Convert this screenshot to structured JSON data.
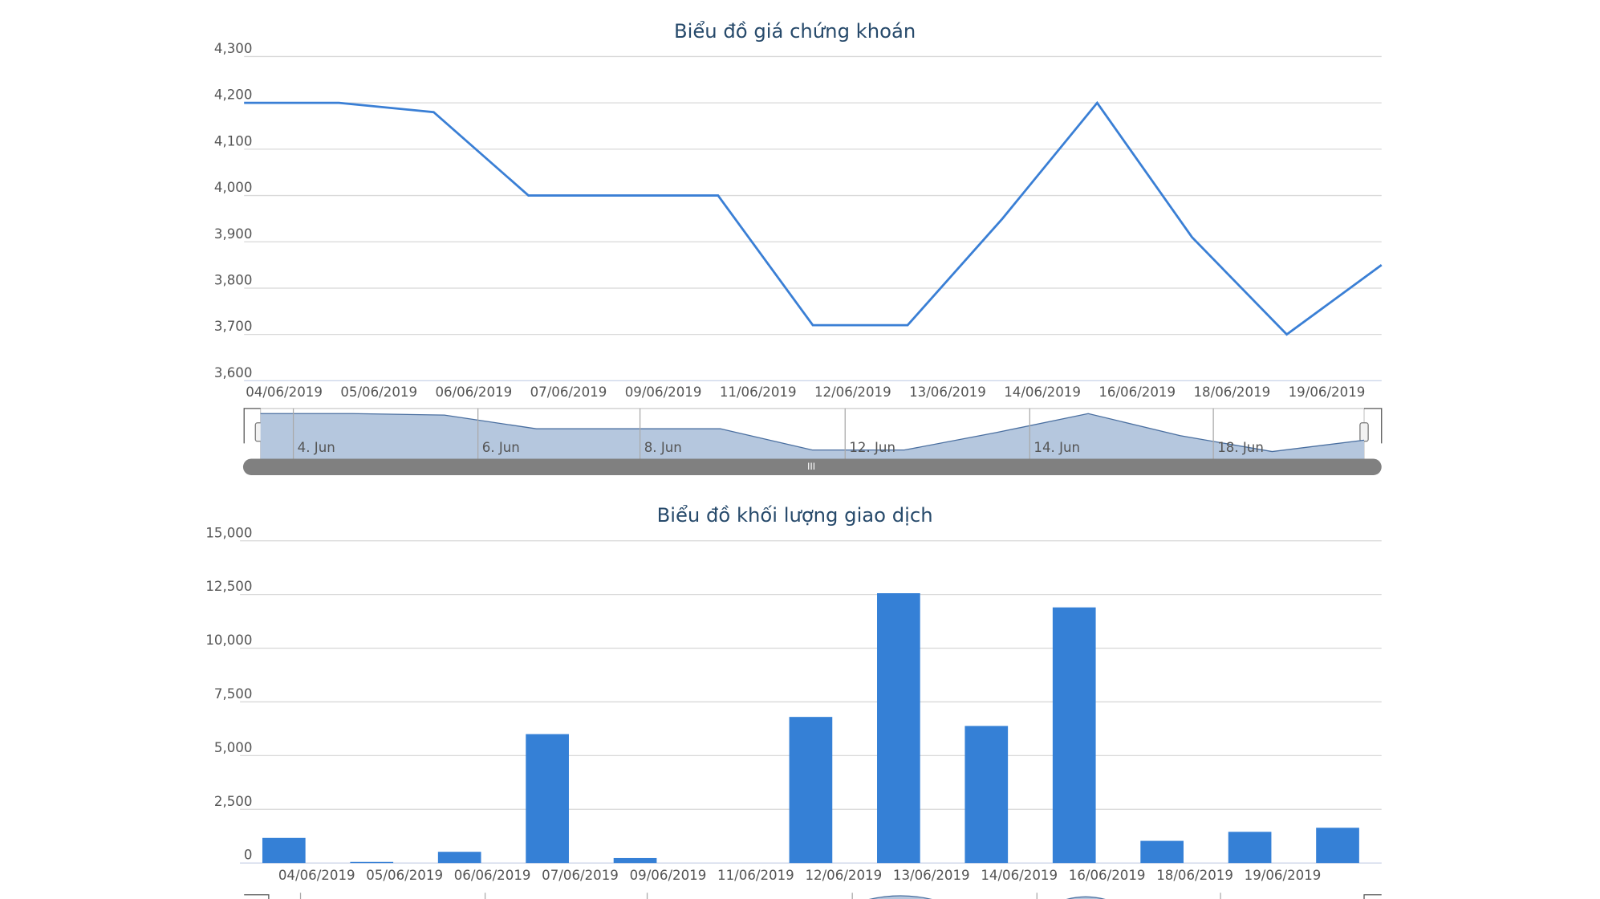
{
  "chart_data": [
    {
      "type": "line",
      "title": "Biểu đồ giá chứng khoán",
      "categories": [
        "04/06/2019",
        "05/06/2019",
        "06/06/2019",
        "07/06/2019",
        "09/06/2019",
        "11/06/2019",
        "12/06/2019",
        "13/06/2019",
        "14/06/2019",
        "16/06/2019",
        "18/06/2019",
        "19/06/2019",
        null
      ],
      "values": [
        4200,
        4200,
        4180,
        4000,
        4000,
        4000,
        3720,
        3720,
        3950,
        4200,
        3910,
        3700,
        3850
      ],
      "color": "#3a7fd5",
      "ylim": [
        3600,
        4300
      ],
      "yticks": [
        {
          "value": 3600,
          "label": "3,600"
        },
        {
          "value": 3700,
          "label": "3,700"
        },
        {
          "value": 3800,
          "label": "3,800"
        },
        {
          "value": 3900,
          "label": "3,900"
        },
        {
          "value": 4000,
          "label": "4,000"
        },
        {
          "value": 4100,
          "label": "4,100"
        },
        {
          "value": 4200,
          "label": "4,200"
        },
        {
          "value": 4300,
          "label": "4,300"
        }
      ],
      "grid": true,
      "navigator_labels": [
        "4. Jun",
        "6. Jun",
        "8. Jun",
        "12. Jun",
        "14. Jun",
        "18. Jun"
      ]
    },
    {
      "type": "bar",
      "title": "Biểu đồ khối lượng giao dịch",
      "categories": [
        "04/06/2019",
        "05/06/2019",
        "06/06/2019",
        "07/06/2019",
        "09/06/2019",
        "11/06/2019",
        "12/06/2019",
        "13/06/2019",
        "14/06/2019",
        "16/06/2019",
        "18/06/2019",
        "19/06/2019",
        null
      ],
      "values": [
        1170,
        50,
        520,
        6000,
        230,
        0,
        6800,
        12560,
        6380,
        11900,
        1030,
        1450,
        1640
      ],
      "color": "#3580d6",
      "ylim": [
        0,
        15000
      ],
      "yticks": [
        0,
        {
          "value": 2500,
          "label": "2,500"
        },
        {
          "value": 5000,
          "label": "5,000"
        },
        {
          "value": 7500,
          "label": "7,500"
        },
        {
          "value": 10000,
          "label": "10,000"
        },
        {
          "value": 12500,
          "label": "12,500"
        },
        {
          "value": 15000,
          "label": "15,000"
        }
      ],
      "grid": true
    }
  ]
}
